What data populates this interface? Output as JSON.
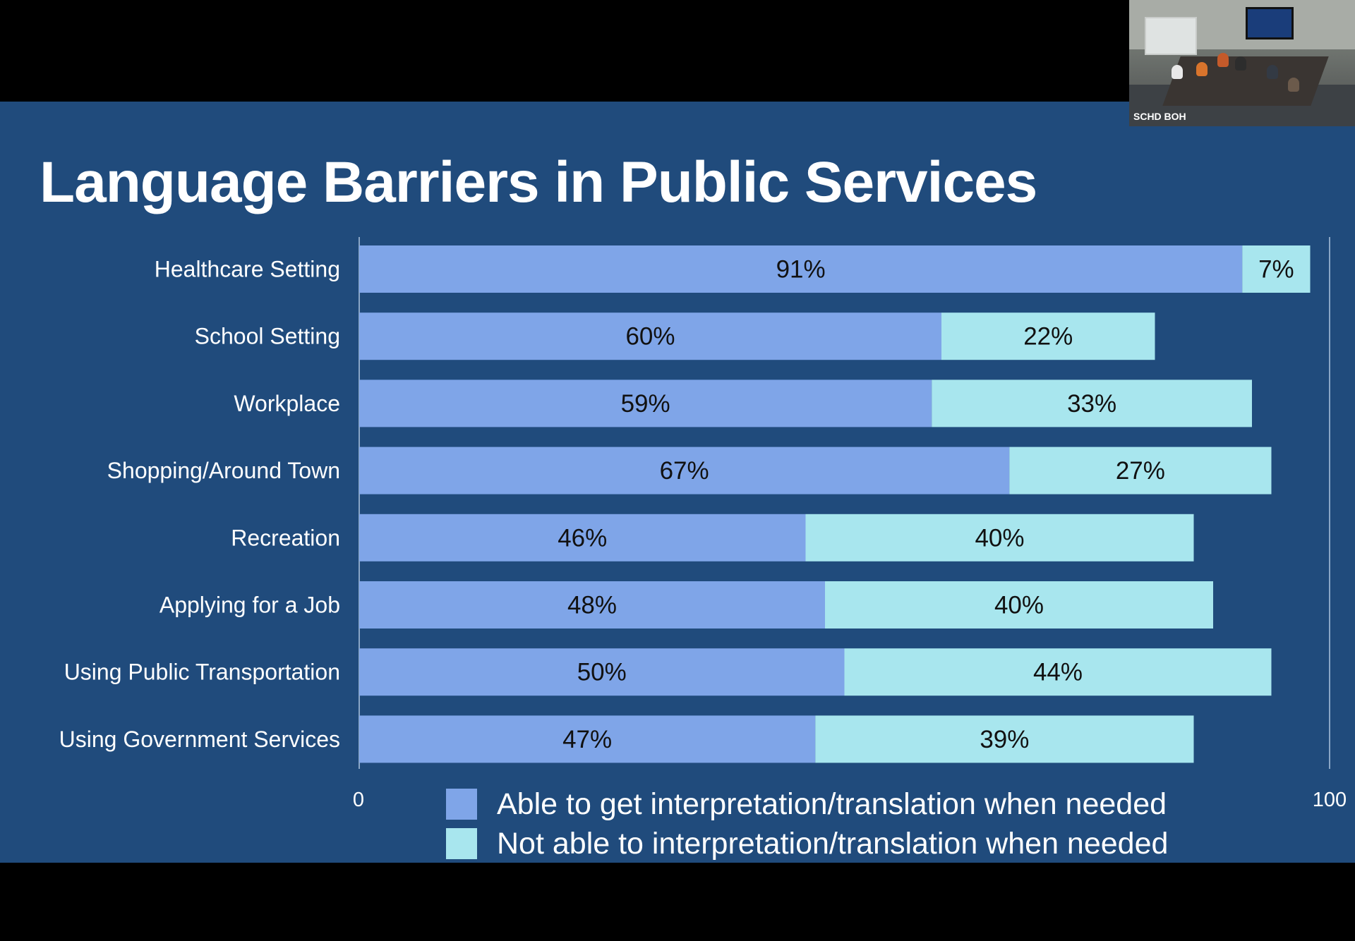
{
  "slide": {
    "title": "Language Barriers in Public Services",
    "background": "#204b7c"
  },
  "camera": {
    "label": "SCHD BOH"
  },
  "chart_data": {
    "type": "bar",
    "orientation": "horizontal",
    "stacked": true,
    "categories": [
      "Healthcare Setting",
      "School Setting",
      "Workplace",
      "Shopping/Around Town",
      "Recreation",
      "Applying for a Job",
      "Using Public Transportation",
      "Using Government Services"
    ],
    "series": [
      {
        "name": "Able to get interpretation/translation when needed",
        "color": "#7fa5e8",
        "values": [
          91,
          60,
          59,
          67,
          46,
          48,
          50,
          47
        ],
        "labels": [
          "91%",
          "60%",
          "59%",
          "67%",
          "46%",
          "48%",
          "50%",
          "47%"
        ]
      },
      {
        "name": "Not able to interpretation/translation when needed",
        "color": "#a8e6ee",
        "values": [
          7,
          22,
          33,
          27,
          40,
          40,
          44,
          39
        ],
        "labels": [
          "7%",
          "22%",
          "33%",
          "27%",
          "40%",
          "40%",
          "44%",
          "39%"
        ]
      }
    ],
    "xlim": [
      0,
      100
    ],
    "x_ticks": [
      "0",
      "100"
    ],
    "legend_position": "bottom-center",
    "grid": false
  }
}
